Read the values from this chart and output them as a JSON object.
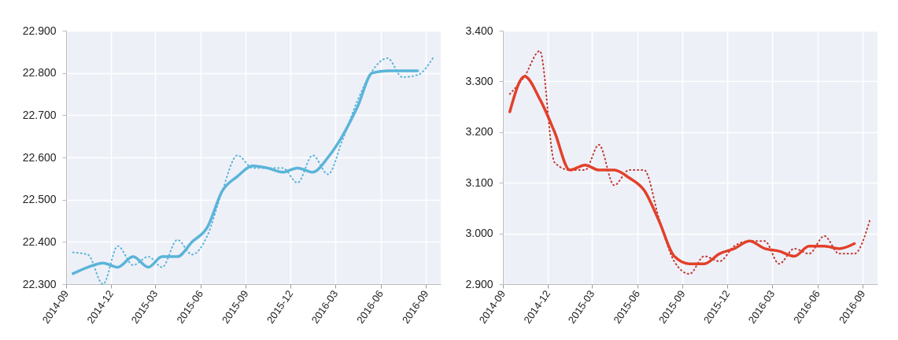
{
  "chart_data": [
    {
      "type": "line",
      "xlim": [
        "2014-09",
        "2016-10"
      ],
      "xticks": [
        "2014-09",
        "2014-12",
        "2015-03",
        "2015-06",
        "2015-09",
        "2015-12",
        "2016-03",
        "2016-06",
        "2016-09"
      ],
      "ylim": [
        22.3,
        22.9
      ],
      "yticks": [
        {
          "value": 22.3,
          "label": "22.300"
        },
        {
          "value": 22.4,
          "label": "22.400"
        },
        {
          "value": 22.5,
          "label": "22.500"
        },
        {
          "value": 22.6,
          "label": "22.600"
        },
        {
          "value": 22.7,
          "label": "22.700"
        },
        {
          "value": 22.8,
          "label": "22.800"
        },
        {
          "value": 22.9,
          "label": "22.900"
        }
      ],
      "grid": true,
      "series": [
        {
          "color": "#5ab4d9",
          "line_style": "dotted",
          "x": [
            "2014-09-15",
            "2014-10-15",
            "2014-11-15",
            "2014-12-15",
            "2015-01-15",
            "2015-02-15",
            "2015-03-15",
            "2015-04-15",
            "2015-05-15",
            "2015-06-15",
            "2015-07-15",
            "2015-08-15",
            "2015-09-15",
            "2015-10-15",
            "2015-11-15",
            "2015-12-15",
            "2016-01-15",
            "2016-02-15",
            "2016-03-15",
            "2016-04-15",
            "2016-05-15",
            "2016-06-15",
            "2016-07-15",
            "2016-08-15",
            "2016-09-15"
          ],
          "values": [
            22.375,
            22.37,
            22.3,
            22.39,
            22.345,
            22.365,
            22.34,
            22.405,
            22.37,
            22.415,
            22.52,
            22.605,
            22.575,
            22.575,
            22.575,
            22.54,
            22.605,
            22.56,
            22.64,
            22.735,
            22.805,
            22.835,
            22.79,
            22.795,
            22.835
          ]
        },
        {
          "color": "#5ab4d9",
          "line_style": "solid",
          "x": [
            "2014-09-15",
            "2014-10-15",
            "2014-11-15",
            "2014-12-15",
            "2015-01-15",
            "2015-02-15",
            "2015-03-15",
            "2015-04-15",
            "2015-05-15",
            "2015-06-15",
            "2015-07-15",
            "2015-08-15",
            "2015-09-15",
            "2015-10-15",
            "2015-11-15",
            "2015-12-15",
            "2016-01-15",
            "2016-02-15",
            "2016-03-15",
            "2016-04-15",
            "2016-05-15",
            "2016-06-15",
            "2016-07-15",
            "2016-08-15"
          ],
          "values": [
            22.325,
            22.34,
            22.35,
            22.34,
            22.365,
            22.34,
            22.365,
            22.365,
            22.4,
            22.435,
            22.52,
            22.555,
            22.58,
            22.575,
            22.565,
            22.575,
            22.565,
            22.6,
            22.65,
            22.72,
            22.8,
            22.805,
            22.805,
            22.805
          ]
        }
      ]
    },
    {
      "type": "line",
      "xlim": [
        "2014-09",
        "2016-10"
      ],
      "xticks": [
        "2014-09",
        "2014-12",
        "2015-03",
        "2015-06",
        "2015-09",
        "2015-12",
        "2016-03",
        "2016-06",
        "2016-09"
      ],
      "ylim": [
        2.9,
        3.4
      ],
      "yticks": [
        {
          "value": 2.9,
          "label": "2.900"
        },
        {
          "value": 3.0,
          "label": "3.000"
        },
        {
          "value": 3.1,
          "label": "3.100"
        },
        {
          "value": 3.2,
          "label": "3.200"
        },
        {
          "value": 3.3,
          "label": "3.300"
        },
        {
          "value": 3.4,
          "label": "3.400"
        }
      ],
      "grid": true,
      "series": [
        {
          "color": "#c0392b",
          "line_style": "dotted",
          "x": [
            "2014-09-15",
            "2014-10-15",
            "2014-11-15",
            "2014-12-15",
            "2015-01-15",
            "2015-02-15",
            "2015-03-15",
            "2015-04-15",
            "2015-05-15",
            "2015-06-15",
            "2015-07-15",
            "2015-08-15",
            "2015-09-15",
            "2015-10-15",
            "2015-11-15",
            "2015-12-15",
            "2016-01-15",
            "2016-02-15",
            "2016-03-15",
            "2016-04-15",
            "2016-05-15",
            "2016-06-15",
            "2016-07-15",
            "2016-08-15",
            "2016-09-15"
          ],
          "values": [
            3.275,
            3.31,
            3.36,
            3.14,
            3.125,
            3.125,
            3.175,
            3.095,
            3.125,
            3.125,
            3.03,
            2.945,
            2.92,
            2.955,
            2.945,
            2.975,
            2.985,
            2.985,
            2.94,
            2.97,
            2.96,
            2.995,
            2.96,
            2.96,
            3.025
          ]
        },
        {
          "color": "#e2402a",
          "line_style": "solid",
          "x": [
            "2014-09-15",
            "2014-10-15",
            "2014-11-15",
            "2014-12-15",
            "2015-01-15",
            "2015-02-15",
            "2015-03-15",
            "2015-04-15",
            "2015-05-15",
            "2015-06-15",
            "2015-07-15",
            "2015-08-15",
            "2015-09-15",
            "2015-10-15",
            "2015-11-15",
            "2015-12-15",
            "2016-01-15",
            "2016-02-15",
            "2016-03-15",
            "2016-04-15",
            "2016-05-15",
            "2016-06-15",
            "2016-07-15",
            "2016-08-15"
          ],
          "values": [
            3.24,
            3.31,
            3.265,
            3.2,
            3.125,
            3.135,
            3.125,
            3.125,
            3.11,
            3.085,
            3.025,
            2.955,
            2.94,
            2.94,
            2.96,
            2.97,
            2.985,
            2.97,
            2.965,
            2.955,
            2.975,
            2.975,
            2.97,
            2.98
          ]
        }
      ]
    }
  ]
}
